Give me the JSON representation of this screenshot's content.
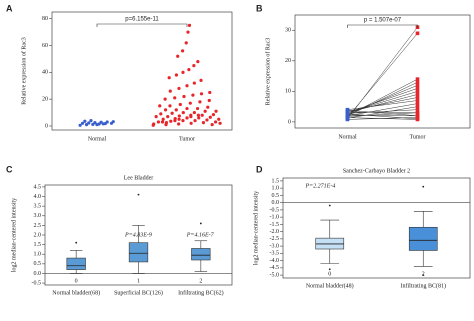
{
  "chart_data": [
    {
      "type": "strip",
      "panel_label": "A",
      "ylabel": "Relative expression of Rac3",
      "annotation": "p=6.155e-11",
      "categories": [
        "Normal",
        "Tumor"
      ],
      "colors": [
        "#3a5fcd",
        "#e8262a"
      ],
      "values": [
        [
          0.5,
          1,
          1.2,
          1.5,
          1.8,
          2,
          2,
          2.2,
          2.5,
          2.8,
          3,
          3.2,
          3.5,
          4,
          1,
          1.6
        ],
        [
          0.5,
          1,
          1.5,
          2,
          2.5,
          3,
          3,
          3.5,
          4,
          4,
          4.5,
          5,
          5,
          5.5,
          6,
          6,
          6.5,
          7,
          7,
          7.5,
          8,
          8,
          8.5,
          9,
          9.5,
          10,
          10,
          11,
          11,
          12,
          12,
          13,
          13,
          14,
          15,
          15,
          16,
          17,
          18,
          19,
          20,
          21,
          22,
          23,
          24,
          25,
          26,
          28,
          30,
          32,
          34,
          36,
          38,
          40,
          42,
          45,
          48,
          52,
          56,
          62,
          70,
          75,
          2,
          3,
          4,
          6,
          8,
          1,
          1.5,
          2.5,
          5,
          7
        ]
      ],
      "ylim": [
        -3,
        85
      ],
      "yticks": [
        0,
        20,
        40,
        60,
        80
      ]
    },
    {
      "type": "paired",
      "panel_label": "B",
      "ylabel": "Relative expression of Rac3",
      "annotation": "p = 1.507e-07",
      "series": [
        {
          "name": "Normal",
          "color": "#3a5fcd",
          "values": [
            1,
            1.5,
            2,
            2.5,
            3,
            3,
            3.5,
            4,
            2,
            1.2,
            2.8,
            3.2,
            1.8,
            2.2,
            3.8,
            0.8,
            2.6,
            1.4,
            3,
            2
          ]
        },
        {
          "name": "Tumor",
          "color": "#e8262a",
          "values": [
            31,
            29,
            14,
            12,
            10,
            9,
            8,
            7,
            6,
            5,
            4,
            3,
            3,
            2,
            2,
            1.5,
            1,
            0.8,
            11,
            13
          ]
        }
      ],
      "ylim": [
        -2,
        35
      ],
      "yticks": [
        0,
        10,
        20,
        30
      ]
    },
    {
      "type": "box",
      "panel_label": "C",
      "title": "Lee Bladder",
      "ylabel": "log2 median-centered intensity",
      "categories": [
        "Normal bladder(68)",
        "Superficial BC(126)",
        "Infiltrating BC(62)"
      ],
      "sublabels": [
        "0",
        "1",
        "2"
      ],
      "annotations": [
        "P=4.83E-9",
        "P=4.16E-7"
      ],
      "colors": [
        "#5b9bd5",
        "#5b9bd5",
        "#5b9bd5"
      ],
      "hline": 0,
      "boxes": [
        {
          "whislo": 0,
          "q1": 0.2,
          "med": 0.4,
          "q3": 0.8,
          "whishi": 1.2,
          "fliers": [
            1.6
          ]
        },
        {
          "whislo": 0,
          "q1": 0.6,
          "med": 1.05,
          "q3": 1.6,
          "whishi": 2.5,
          "fliers": [
            4.1
          ]
        },
        {
          "whislo": 0.1,
          "q1": 0.7,
          "med": 0.95,
          "q3": 1.3,
          "whishi": 1.7,
          "fliers": [
            2.6
          ]
        }
      ],
      "ylim": [
        -0.6,
        4.6
      ],
      "yticks": [
        -0.5,
        {
          "value": 0,
          "label": "0.0"
        },
        0.5,
        {
          "value": 1,
          "label": "1.0"
        },
        1.5,
        {
          "value": 2,
          "label": "2.0"
        },
        2.5,
        {
          "value": 3,
          "label": "3.0"
        },
        3.5,
        {
          "value": 4,
          "label": "4.0"
        },
        4.5
      ]
    },
    {
      "type": "box",
      "panel_label": "D",
      "title": "Sanchez-Carbayo Bladder 2",
      "ylabel": "log2 median-centered intensity",
      "categories": [
        "Normal bladder(48)",
        "Infiltrating BC(81)"
      ],
      "sublabels": [
        "0",
        "2"
      ],
      "annotations": [
        "P=2.271E-4"
      ],
      "colors": [
        "#c5e0f5",
        "#4a90d9"
      ],
      "hline": 0,
      "boxes": [
        {
          "whislo": -4.2,
          "q1": -3.2,
          "med": -2.85,
          "q3": -2.45,
          "whishi": -1.2,
          "fliers": [
            -0.2,
            -4.6
          ]
        },
        {
          "whislo": -4.4,
          "q1": -3.3,
          "med": -2.6,
          "q3": -1.7,
          "whishi": -0.6,
          "fliers": [
            1.1,
            -5
          ]
        }
      ],
      "ylim": [
        -5.2,
        1.7
      ],
      "yticks": [
        1.5,
        {
          "value": 1,
          "label": "1.0"
        },
        0.5,
        {
          "value": 0,
          "label": "0.0"
        },
        -0.5,
        {
          "value": -1,
          "label": "-1.0"
        },
        -1.5,
        {
          "value": -2,
          "label": "-2.0"
        },
        -2.5,
        {
          "value": -3,
          "label": "-3.0"
        },
        -3.5,
        {
          "value": -4,
          "label": "-4.0"
        },
        -4.5,
        {
          "value": -5,
          "label": "-5.0"
        }
      ]
    }
  ]
}
